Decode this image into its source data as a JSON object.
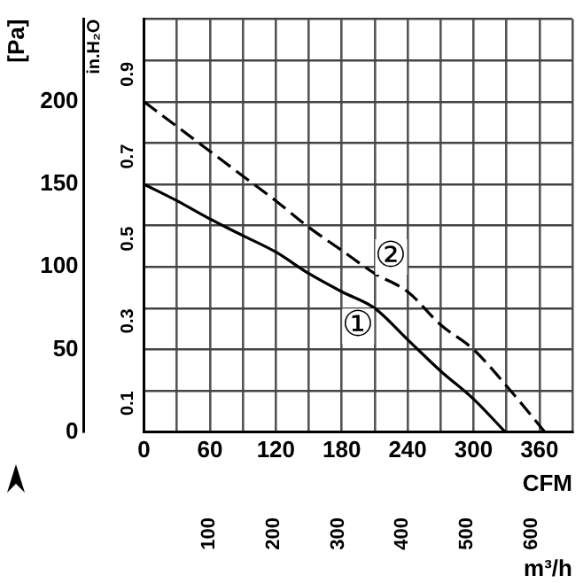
{
  "chart_data": {
    "type": "line",
    "xlabel": "CFM",
    "ylabel": "[Pa]",
    "y2label": "in.H₂O",
    "x2label": "m³/h",
    "xlim": [
      0,
      390
    ],
    "xticks": [
      0,
      {
        "value": 30,
        "label": null
      },
      60,
      {
        "value": 90,
        "label": null
      },
      120,
      {
        "value": 150,
        "label": null
      },
      180,
      {
        "value": 210,
        "label": null
      },
      240,
      {
        "value": 270,
        "label": null
      },
      300,
      {
        "value": 330,
        "label": null
      },
      360,
      {
        "value": 390,
        "label": null
      }
    ],
    "x2lim": [
      0,
      662.6
    ],
    "x2ticks": [
      100,
      200,
      300,
      400,
      500,
      600
    ],
    "ylim": [
      0,
      250
    ],
    "yticks": [
      0,
      {
        "value": 25,
        "label": null
      },
      50,
      {
        "value": 75,
        "label": null
      },
      100,
      {
        "value": 125,
        "label": null
      },
      150,
      {
        "value": 175,
        "label": null
      },
      200,
      {
        "value": 225,
        "label": null
      },
      {
        "value": 250,
        "label": null
      }
    ],
    "y2lim": [
      0,
      1.004
    ],
    "y2ticks": [
      0.1,
      0.3,
      0.5,
      0.7,
      0.9
    ],
    "grid": true,
    "legend": false,
    "marker": "none",
    "series": [
      {
        "color": "#000000",
        "line_style": "solid",
        "x": [
          0,
          30,
          60,
          90,
          120,
          150,
          180,
          210,
          240,
          270,
          300,
          329
        ],
        "values": [
          150,
          140,
          129,
          119,
          109,
          96,
          85,
          75,
          56,
          37,
          20,
          0
        ]
      },
      {
        "color": "#000000",
        "line_style": "dashed",
        "x": [
          0,
          30,
          60,
          90,
          120,
          150,
          180,
          210,
          240,
          270,
          300,
          330,
          365
        ],
        "values": [
          200,
          185,
          170,
          155,
          140,
          124,
          110,
          96,
          85,
          65,
          50,
          28,
          0
        ]
      }
    ],
    "annotations": [
      {
        "text": "①",
        "x": 195,
        "y": 64
      },
      {
        "text": "②",
        "x": 225,
        "y": 106
      }
    ]
  }
}
